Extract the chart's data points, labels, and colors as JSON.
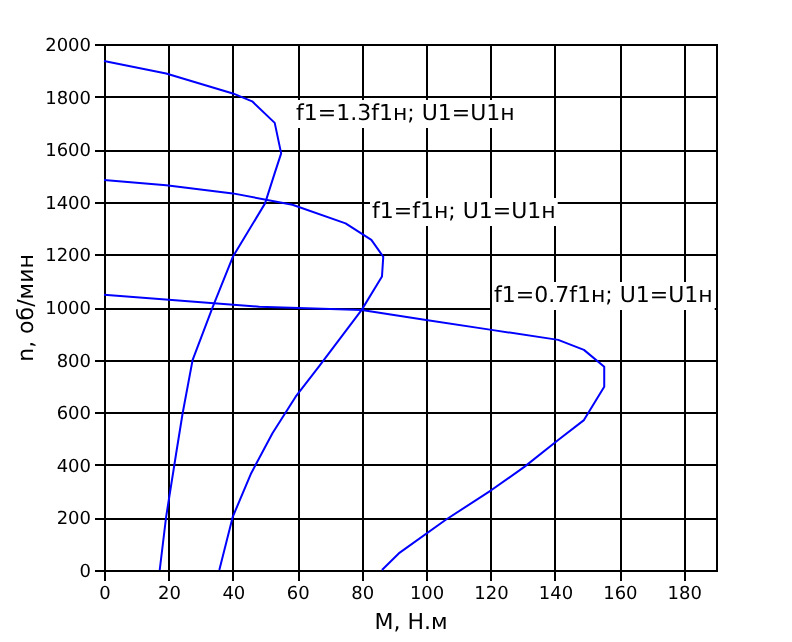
{
  "chart_data": {
    "type": "line",
    "xlabel": "M, Н.м",
    "ylabel": "n, об/мин",
    "xlim": [
      0,
      190
    ],
    "xticks": [
      0,
      20,
      40,
      60,
      80,
      100,
      120,
      140,
      160,
      180
    ],
    "ylim": [
      0,
      2000
    ],
    "yticks": [
      0,
      200,
      400,
      600,
      800,
      1000,
      1200,
      1400,
      1600,
      1800,
      2000
    ],
    "grid": true,
    "legend": false,
    "marker": "none",
    "line_style": "solid",
    "series": [
      {
        "color": "#0000ff",
        "x": [
          0,
          19.3,
          40,
          46,
          53,
          55,
          53,
          50,
          40,
          33.8,
          27.5,
          24.4,
          22.4,
          19.3,
          17.3
        ],
        "values": [
          1935,
          1888,
          1812,
          1782,
          1700,
          1584,
          1509,
          1394,
          1191,
          1001,
          798,
          595,
          443,
          203,
          0
        ]
      },
      {
        "color": "#0000ff",
        "x": [
          0,
          19.3,
          40,
          58.5,
          75,
          83,
          86.7,
          86.3,
          80,
          66.7,
          59.5,
          52.3,
          45.7,
          40,
          35.8
        ],
        "values": [
          1483,
          1463,
          1432,
          1389,
          1318,
          1255,
          1191,
          1116,
          989,
          773,
          659,
          520,
          368,
          203,
          0
        ]
      },
      {
        "color": "#0000ff",
        "x": [
          0,
          48.2,
          80,
          100,
          120.3,
          141,
          149,
          155.3,
          155.3,
          149,
          141,
          130.6,
          120.3,
          106,
          91.5,
          86.3
        ],
        "values": [
          1047,
          1001,
          989,
          951,
          913,
          875,
          837,
          773,
          697,
          570,
          494,
          393,
          304,
          190,
          63,
          0
        ]
      }
    ],
    "annotations": [
      "f1=1.3f1н; U1=U1н",
      "f1=f1н; U1=U1н",
      "f1=0.7f1н; U1=U1н"
    ]
  }
}
